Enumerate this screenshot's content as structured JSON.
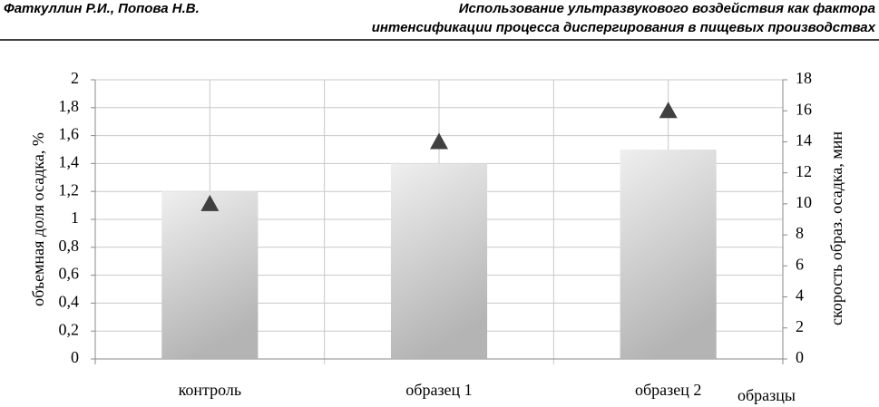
{
  "header": {
    "authors": "Фаткуллин Р.И., Попова Н.В.",
    "title_lines": [
      "Использование ультразвукового воздействия как фактора",
      "интенсификации процесса диспергирования в пищевых производствах"
    ]
  },
  "chart_data": {
    "type": "bar",
    "y_label": "объемная доля осадка, %",
    "y2_label": "скорость образ.  осадка, мин",
    "x_label": "образцы",
    "categories": [
      "контроль",
      "образец 1",
      "образец 2"
    ],
    "series": [
      {
        "type": "bar",
        "color": "#bdbdbd",
        "values": [
          1.2,
          1.4,
          1.5
        ]
      },
      {
        "type": "marker",
        "axis": "y2",
        "color": "#404040",
        "values": [
          10,
          14,
          16
        ]
      }
    ],
    "ylim": [
      0,
      2
    ],
    "yticks": [
      0,
      {
        "value": 0.2,
        "label": "0,2"
      },
      {
        "value": 0.4,
        "label": "0,4"
      },
      {
        "value": 0.6,
        "label": "0,6"
      },
      {
        "value": 0.8,
        "label": "0,8"
      },
      1,
      {
        "value": 1.2,
        "label": "1,2"
      },
      {
        "value": 1.4,
        "label": "1,4"
      },
      {
        "value": 1.6,
        "label": "1,6"
      },
      {
        "value": 1.8,
        "label": "1,8"
      },
      2
    ],
    "y2lim": [
      0,
      18
    ],
    "y2ticks": [
      0,
      2,
      4,
      6,
      8,
      10,
      12,
      14,
      16,
      18
    ],
    "grid": true
  }
}
